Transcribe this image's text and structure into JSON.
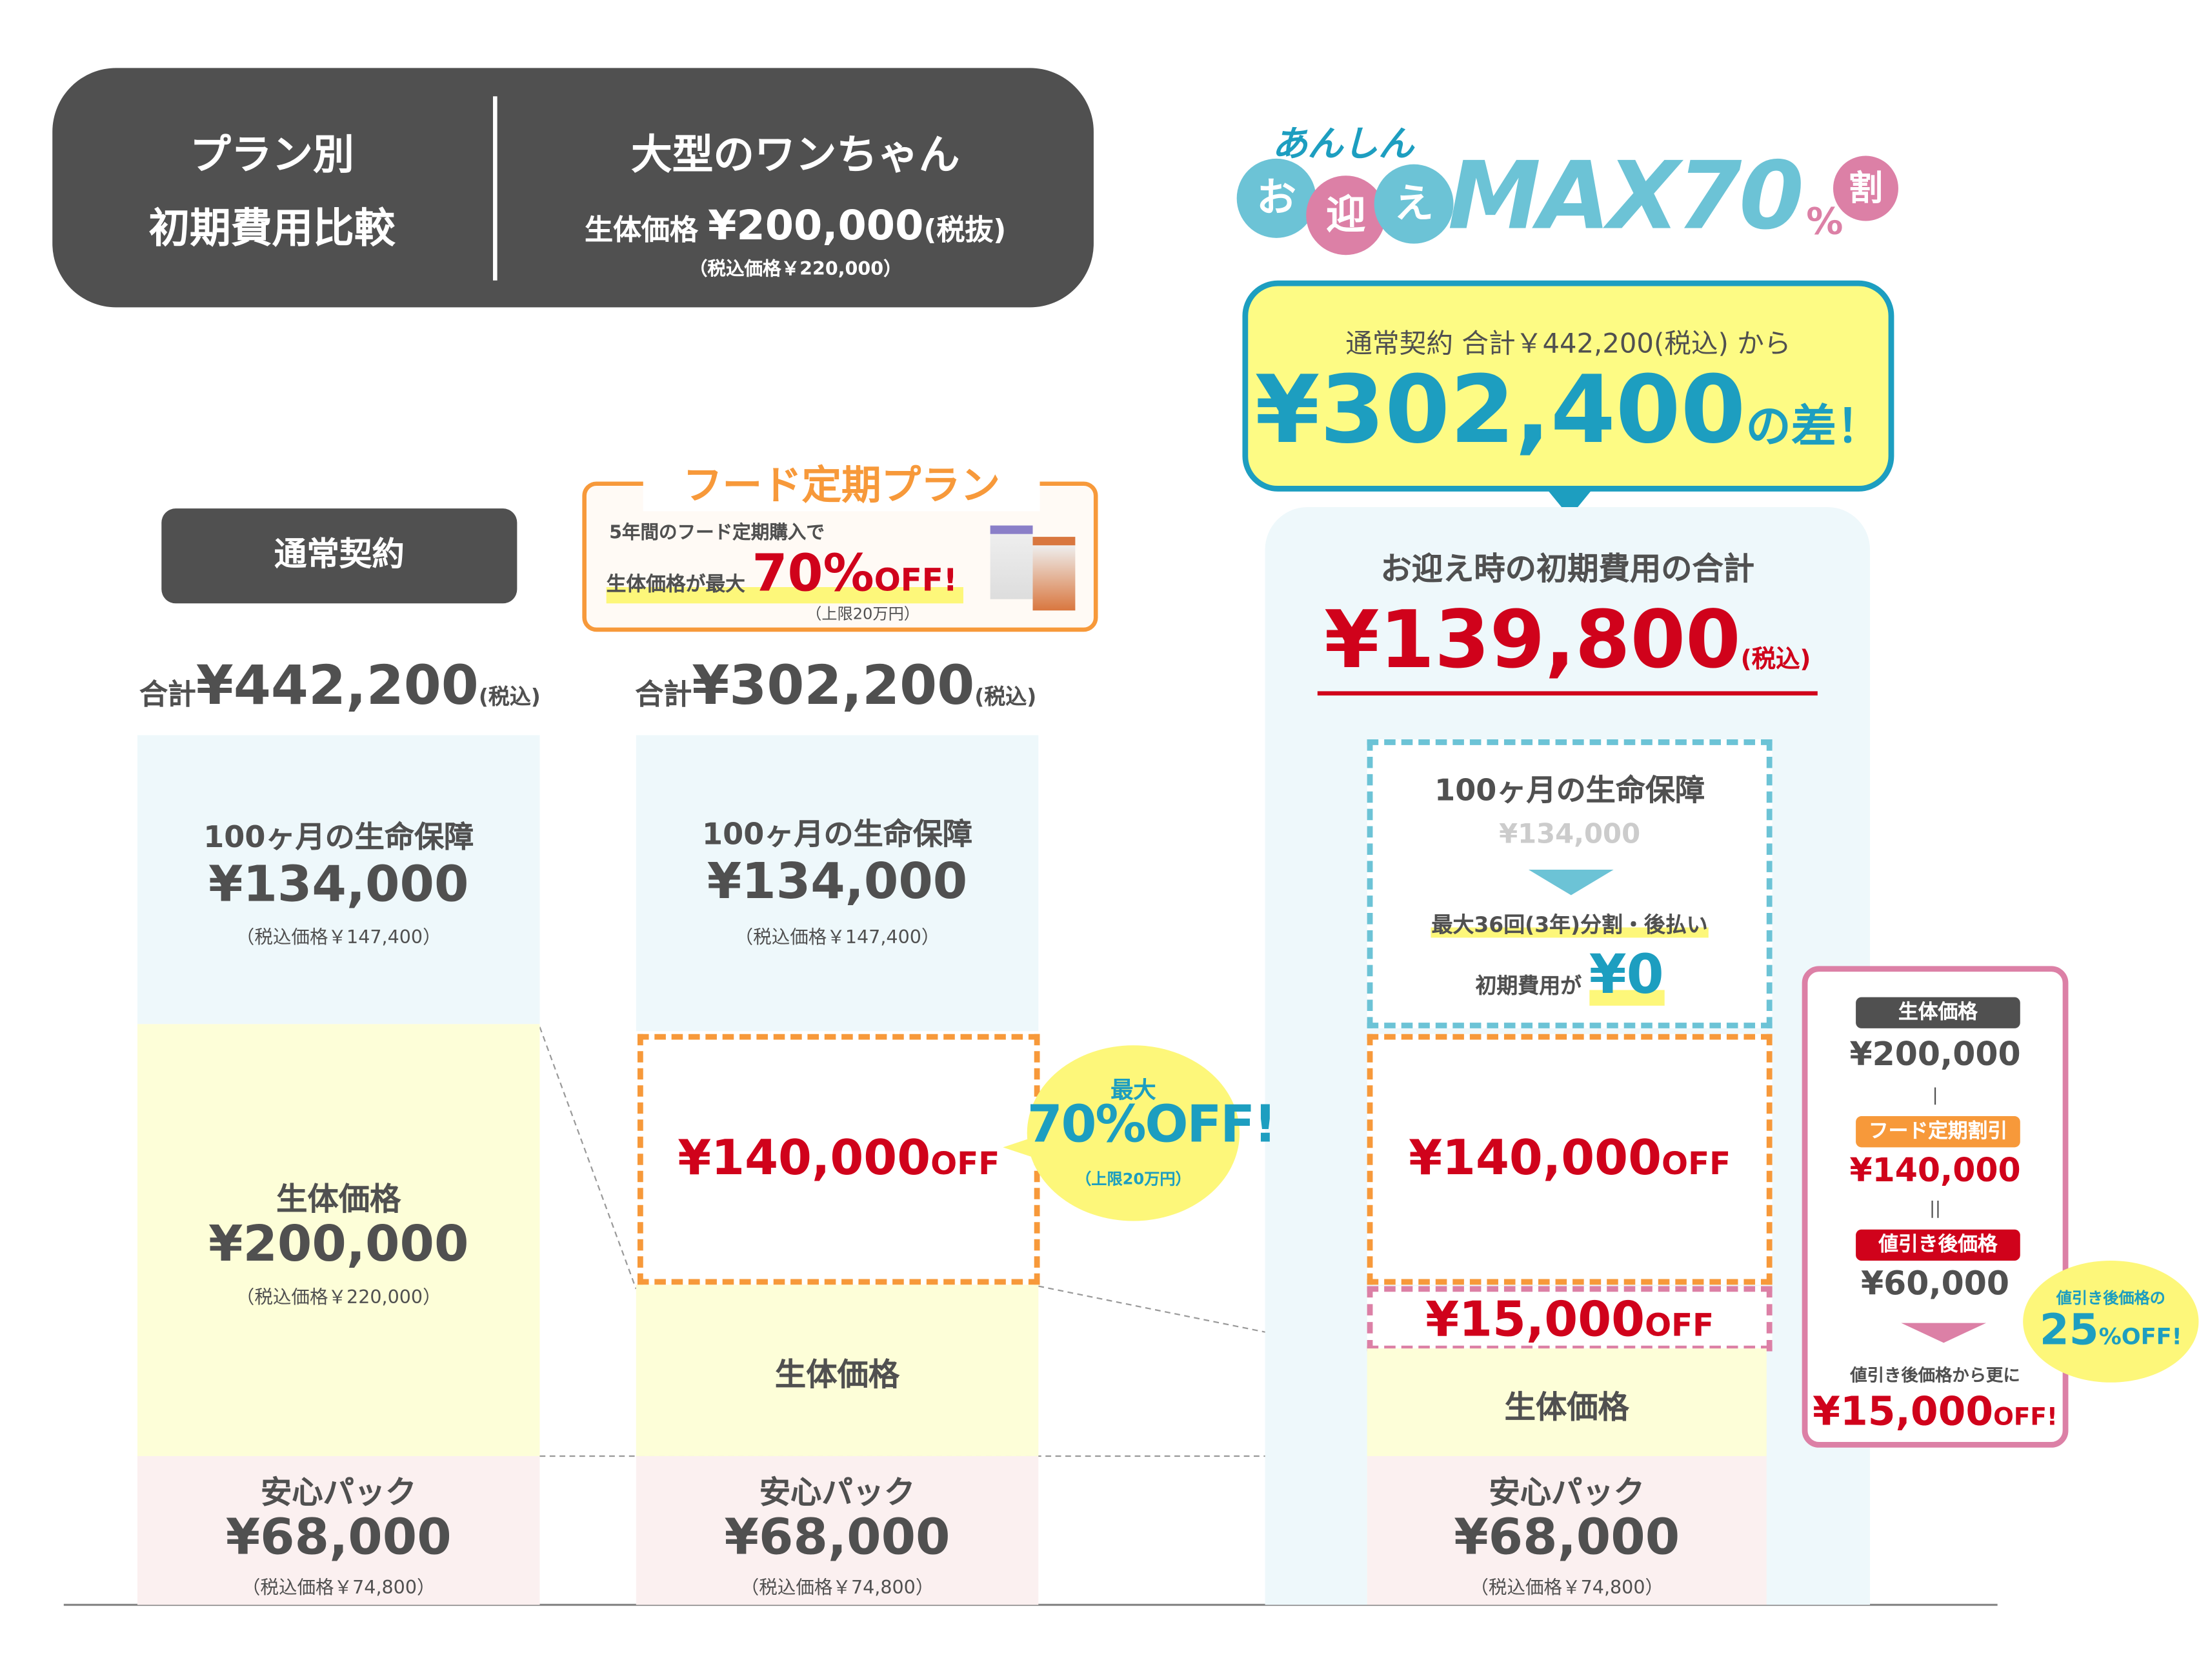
{
  "colors": {
    "dark": "#505050",
    "teal": "#1d9ec0",
    "red": "#d0021b",
    "orange": "#f7993a",
    "pink": "#dc80a6",
    "yellow": "#fdfed8",
    "light_blue": "#eef8fb",
    "light_pink": "#fbf0f0",
    "highlight": "#fdf77a"
  },
  "header": {
    "left_line1": "プラン別",
    "left_line2": "初期費用比較",
    "right_title": "大型のワンちゃん",
    "right_price_label": "生体価格",
    "right_price": "¥200,000",
    "right_price_note": "(税抜)",
    "right_tax_incl": "（税込価格￥220,000）"
  },
  "logo": {
    "small": "あんしん",
    "main1": "お",
    "main2": "迎",
    "main3": "え",
    "max": "MAX70",
    "pct": "%",
    "suffix": "割"
  },
  "callout": {
    "line1": "通常契約 合計￥442,200(税込) から",
    "amount": "¥302,400",
    "suffix": "の差！"
  },
  "plan_normal": {
    "label": "通常契約",
    "total_label": "合計",
    "total": "¥442,200",
    "total_note": "(税込)",
    "insurance": {
      "title": "100ヶ月の生命保障",
      "price": "¥134,000",
      "note": "（税込価格￥147,400）"
    },
    "body": {
      "title": "生体価格",
      "price": "¥200,000",
      "note": "（税込価格￥220,000）"
    },
    "pack": {
      "title": "安心パック",
      "price": "¥68,000",
      "note": "（税込価格￥74,800）"
    }
  },
  "plan_food": {
    "heading": "フード定期プラン",
    "desc1": "5年間のフード定期購入で",
    "desc2": "生体価格が最大",
    "pct": "70%",
    "off": "OFF!",
    "cap": "（上限20万円）",
    "total_label": "合計",
    "total": "¥302,200",
    "total_note": "(税込)",
    "insurance": {
      "title": "100ヶ月の生命保障",
      "price": "¥134,000",
      "note": "（税込価格￥147,400）"
    },
    "discount": {
      "price": "¥140,000",
      "off": "OFF"
    },
    "body": {
      "title": "生体価格"
    },
    "pack": {
      "title": "安心パック",
      "price": "¥68,000",
      "note": "（税込価格￥74,800）"
    },
    "bubble": {
      "line1": "最大",
      "pct": "70%OFF!",
      "cap": "（上限20万円）"
    }
  },
  "plan_anshin": {
    "total_title": "お迎え時の初期費用の合計",
    "total": "¥139,800",
    "total_note": "(税込)",
    "insurance": {
      "title": "100ヶ月の生命保障",
      "price": "¥134,000",
      "installment": "最大36回(3年)分割・後払い",
      "initial_label": "初期費用が",
      "initial": "¥0"
    },
    "discount": {
      "price": "¥140,000",
      "off": "OFF"
    },
    "extra": {
      "price": "¥15,000",
      "off": "OFF"
    },
    "body": {
      "title": "生体価格"
    },
    "pack": {
      "title": "安心パック",
      "price": "¥68,000",
      "note": "（税込価格￥74,800）"
    }
  },
  "detail": {
    "badge1": "生体価格",
    "price1": "¥200,000",
    "minus": "|",
    "badge2": "フード定期割引",
    "price2": "¥140,000",
    "equals": "||",
    "badge3": "値引き後価格",
    "price3": "¥60,000",
    "more": "値引き後価格から更に",
    "final": "¥15,000",
    "final_off": "OFF!",
    "bubble": {
      "line1": "値引き後価格の",
      "pct": "25",
      "off": "%OFF!"
    }
  }
}
